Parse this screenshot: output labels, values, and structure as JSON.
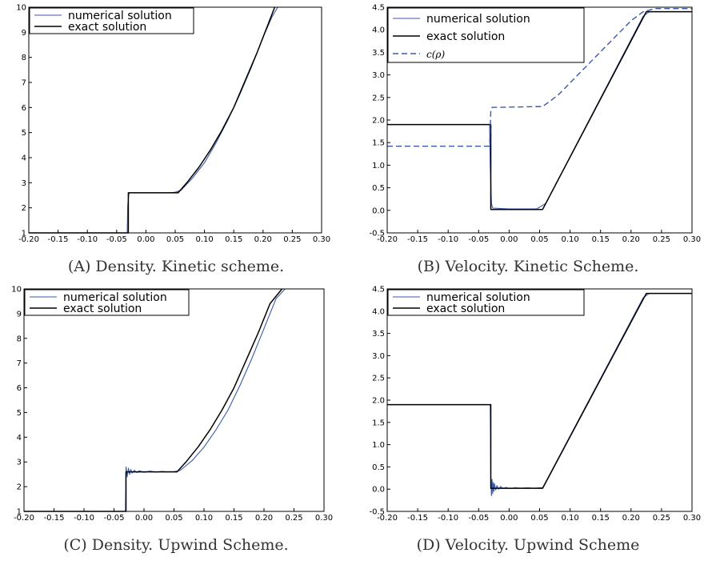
{
  "colors": {
    "numerical": "#3a5aa8",
    "exact": "#000000",
    "c_rho": "#3a5aa8",
    "axis": "#000000"
  },
  "captions": {
    "a": "(A) Density. Kinetic scheme.",
    "b": "(B) Velocity. Kinetic Scheme.",
    "c": "(C) Density. Upwind Scheme.",
    "d": "(D) Velocity. Upwind Scheme"
  },
  "chart_data": [
    {
      "id": "a",
      "type": "line",
      "title": "",
      "xlabel": "",
      "ylabel": "",
      "xlim": [
        -0.2,
        0.3
      ],
      "ylim": [
        1,
        10
      ],
      "xticks": [
        "-0.20",
        "-0.15",
        "-0.10",
        "-0.05",
        "0.00",
        "0.05",
        "0.10",
        "0.15",
        "0.20",
        "0.25",
        "0.30"
      ],
      "yticks": [
        "1",
        "2",
        "3",
        "4",
        "5",
        "6",
        "7",
        "8",
        "9",
        "10"
      ],
      "grid": false,
      "legend_position": "top-left",
      "series": [
        {
          "name": "numerical solution",
          "style": "numerical",
          "x": [
            -0.2,
            -0.032,
            -0.031,
            -0.029,
            -0.027,
            0.0,
            0.04,
            0.05,
            0.06,
            0.08,
            0.1,
            0.12,
            0.14,
            0.16,
            0.18,
            0.2,
            0.215,
            0.225,
            0.23
          ],
          "y": [
            1,
            1,
            2.1,
            2.57,
            2.6,
            2.6,
            2.6,
            2.62,
            2.7,
            3.2,
            3.8,
            4.6,
            5.5,
            6.5,
            7.6,
            8.8,
            9.6,
            10,
            10
          ]
        },
        {
          "name": "exact solution",
          "style": "exact",
          "x": [
            -0.2,
            -0.03,
            -0.03,
            0.055,
            0.07,
            0.09,
            0.11,
            0.13,
            0.15,
            0.17,
            0.19,
            0.21,
            0.22
          ],
          "y": [
            1,
            1,
            2.6,
            2.6,
            3.0,
            3.6,
            4.3,
            5.1,
            6.0,
            7.1,
            8.2,
            9.4,
            10
          ]
        }
      ]
    },
    {
      "id": "b",
      "type": "line",
      "title": "",
      "xlabel": "",
      "ylabel": "",
      "xlim": [
        -0.2,
        0.3
      ],
      "ylim": [
        -0.5,
        4.5
      ],
      "xticks": [
        "-0.20",
        "-0.15",
        "-0.10",
        "-0.05",
        "0.00",
        "0.05",
        "0.10",
        "0.15",
        "0.20",
        "0.25",
        "0.30"
      ],
      "yticks": [
        "-0.5",
        "0.0",
        "0.5",
        "1.0",
        "1.5",
        "2.0",
        "2.5",
        "3.0",
        "3.5",
        "4.0",
        "4.5"
      ],
      "grid": false,
      "legend_position": "top-left",
      "series": [
        {
          "name": "numerical solution",
          "style": "numerical",
          "x": [
            -0.2,
            -0.032,
            -0.031,
            -0.029,
            -0.027,
            0.0,
            0.045,
            0.06,
            0.22,
            0.23,
            0.3
          ],
          "y": [
            1.9,
            1.9,
            1.0,
            0.15,
            0.05,
            0.03,
            0.03,
            0.15,
            4.3,
            4.4,
            4.4
          ]
        },
        {
          "name": "exact solution",
          "style": "exact",
          "x": [
            -0.2,
            -0.03,
            -0.03,
            0.055,
            0.225,
            0.3
          ],
          "y": [
            1.9,
            1.9,
            0.02,
            0.02,
            4.4,
            4.4
          ]
        },
        {
          "name": "c(ρ)",
          "style": "dashed",
          "x": [
            -0.2,
            -0.032,
            -0.03,
            -0.028,
            0.055,
            0.08,
            0.12,
            0.16,
            0.2,
            0.22,
            0.24,
            0.3
          ],
          "y": [
            1.42,
            1.42,
            2.2,
            2.28,
            2.3,
            2.55,
            3.1,
            3.65,
            4.2,
            4.4,
            4.47,
            4.47
          ]
        }
      ]
    },
    {
      "id": "c",
      "type": "line",
      "title": "",
      "xlabel": "",
      "ylabel": "",
      "xlim": [
        -0.2,
        0.3
      ],
      "ylim": [
        1,
        10
      ],
      "xticks": [
        "-0.20",
        "-0.15",
        "-0.10",
        "-0.05",
        "0.00",
        "0.05",
        "0.10",
        "0.15",
        "0.20",
        "0.25",
        "0.30"
      ],
      "yticks": [
        "1",
        "2",
        "3",
        "4",
        "5",
        "6",
        "7",
        "8",
        "9",
        "10"
      ],
      "grid": false,
      "legend_position": "top-left",
      "series": [
        {
          "name": "numerical solution",
          "style": "numerical",
          "x": [
            -0.2,
            -0.031,
            -0.03,
            -0.028,
            -0.026,
            -0.024,
            -0.022,
            -0.02,
            -0.016,
            -0.012,
            -0.008,
            0.0,
            0.01,
            0.02,
            0.03,
            0.04,
            0.05,
            0.06,
            0.08,
            0.1,
            0.12,
            0.14,
            0.16,
            0.18,
            0.2,
            0.22,
            0.235
          ],
          "y": [
            1,
            1,
            2.8,
            2.4,
            2.75,
            2.5,
            2.7,
            2.55,
            2.66,
            2.57,
            2.64,
            2.58,
            2.63,
            2.59,
            2.62,
            2.6,
            2.61,
            2.65,
            3.05,
            3.6,
            4.3,
            5.1,
            6.1,
            7.2,
            8.4,
            9.6,
            10
          ]
        },
        {
          "name": "exact solution",
          "style": "exact",
          "x": [
            -0.2,
            -0.03,
            -0.03,
            0.055,
            0.07,
            0.09,
            0.11,
            0.13,
            0.15,
            0.17,
            0.19,
            0.21,
            0.23
          ],
          "y": [
            1,
            1,
            2.6,
            2.6,
            3.0,
            3.6,
            4.3,
            5.1,
            6.0,
            7.1,
            8.2,
            9.4,
            10
          ]
        }
      ]
    },
    {
      "id": "d",
      "type": "line",
      "title": "",
      "xlabel": "",
      "ylabel": "",
      "xlim": [
        -0.2,
        0.3
      ],
      "ylim": [
        -0.5,
        4.5
      ],
      "xticks": [
        "-0.20",
        "-0.15",
        "-0.10",
        "-0.05",
        "0.00",
        "0.05",
        "0.10",
        "0.15",
        "0.20",
        "0.25",
        "0.30"
      ],
      "yticks": [
        "-0.5",
        "0.0",
        "0.5",
        "1.0",
        "1.5",
        "2.0",
        "2.5",
        "3.0",
        "3.5",
        "4.0",
        "4.5"
      ],
      "grid": false,
      "legend_position": "top-left",
      "series": [
        {
          "name": "numerical solution",
          "style": "numerical",
          "x": [
            -0.2,
            -0.031,
            -0.03,
            -0.029,
            -0.028,
            -0.027,
            -0.026,
            -0.025,
            -0.024,
            -0.022,
            -0.02,
            -0.017,
            -0.014,
            -0.01,
            -0.005,
            0.0,
            0.01,
            0.02,
            0.03,
            0.04,
            0.05,
            0.055,
            0.22,
            0.23,
            0.3
          ],
          "y": [
            1.9,
            1.9,
            0.3,
            -0.15,
            0.22,
            -0.1,
            0.15,
            -0.05,
            0.12,
            -0.02,
            0.08,
            0.0,
            0.06,
            0.01,
            0.04,
            0.01,
            0.03,
            0.02,
            0.03,
            0.02,
            0.03,
            0.03,
            4.3,
            4.4,
            4.4
          ]
        },
        {
          "name": "exact solution",
          "style": "exact",
          "x": [
            -0.2,
            -0.03,
            -0.03,
            0.055,
            0.225,
            0.3
          ],
          "y": [
            1.9,
            1.9,
            0.02,
            0.02,
            4.4,
            4.4
          ]
        }
      ]
    }
  ]
}
